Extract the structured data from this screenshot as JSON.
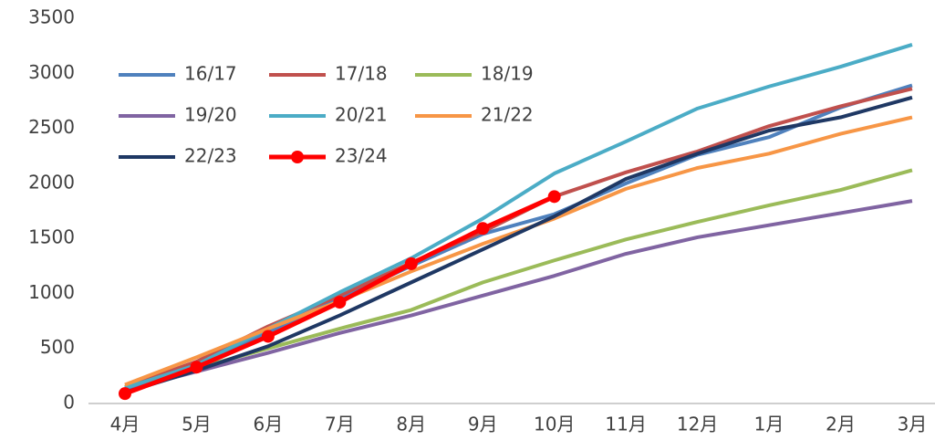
{
  "chart_data": {
    "type": "line",
    "categories": [
      "4月",
      "5月",
      "6月",
      "7月",
      "8月",
      "9月",
      "10月",
      "11月",
      "12月",
      "1月",
      "2月",
      "3月"
    ],
    "ylim": [
      0,
      3500
    ],
    "yticks": [
      0,
      500,
      1000,
      1500,
      2000,
      2500,
      3000,
      3500
    ],
    "legend": "top-left",
    "series": [
      {
        "name": "16/17",
        "color": "#4f81bd",
        "values": [
          100,
          350,
          650,
          950,
          1250,
          1540,
          1720,
          2000,
          2260,
          2420,
          2690,
          2890
        ]
      },
      {
        "name": "17/18",
        "color": "#c0504d",
        "values": [
          150,
          380,
          700,
          980,
          1280,
          1560,
          1880,
          2100,
          2290,
          2520,
          2700,
          2860
        ]
      },
      {
        "name": "18/19",
        "color": "#9bbb59",
        "values": [
          150,
          320,
          500,
          680,
          850,
          1100,
          1300,
          1490,
          1650,
          1800,
          1940,
          2120
        ]
      },
      {
        "name": "19/20",
        "color": "#8064a2",
        "values": [
          120,
          290,
          460,
          640,
          800,
          980,
          1160,
          1360,
          1510,
          1620,
          1730,
          1840
        ]
      },
      {
        "name": "20/21",
        "color": "#4bacc6",
        "values": [
          140,
          350,
          680,
          1010,
          1320,
          1680,
          2090,
          2380,
          2680,
          2880,
          3060,
          3260
        ]
      },
      {
        "name": "21/22",
        "color": "#f79646",
        "values": [
          170,
          420,
          680,
          930,
          1200,
          1450,
          1680,
          1950,
          2140,
          2270,
          2450,
          2600
        ]
      },
      {
        "name": "22/23",
        "color": "#1f3864",
        "values": [
          100,
          300,
          520,
          800,
          1100,
          1400,
          1700,
          2040,
          2270,
          2480,
          2600,
          2780
        ]
      },
      {
        "name": "23/24",
        "color": "#ff0000",
        "markers": true,
        "values": [
          90,
          330,
          610,
          920,
          1270,
          1590,
          1880,
          null,
          null,
          null,
          null,
          null
        ]
      }
    ]
  }
}
